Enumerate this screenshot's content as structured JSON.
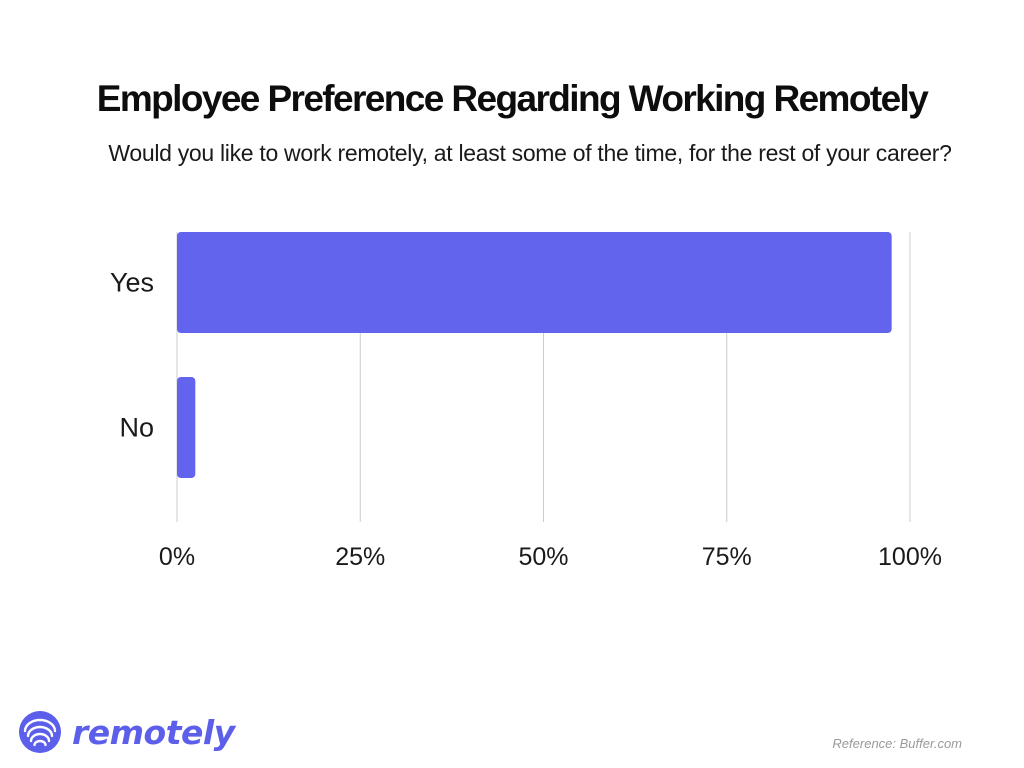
{
  "chart_data": {
    "type": "bar",
    "orientation": "horizontal",
    "title": "Employee Preference Regarding Working Remotely",
    "subtitle": "Would you like to work remotely, at least some of the time, for the rest of your career?",
    "categories": [
      "Yes",
      "No"
    ],
    "values": [
      97.5,
      2.5
    ],
    "unit": "%",
    "xlim": [
      0,
      100
    ],
    "ticks": [
      0,
      25,
      50,
      75,
      100
    ],
    "tick_labels": [
      "0%",
      "25%",
      "50%",
      "75%",
      "100%"
    ],
    "grid": true,
    "legend": "none",
    "bar_color": "#6264EE",
    "grid_color": "#cccccc"
  },
  "footer": {
    "logo_text": "remotely",
    "logo_icon": "remotely-logo-icon",
    "brand_color": "#5C5FEA",
    "reference": "Reference:  Buffer.com"
  }
}
